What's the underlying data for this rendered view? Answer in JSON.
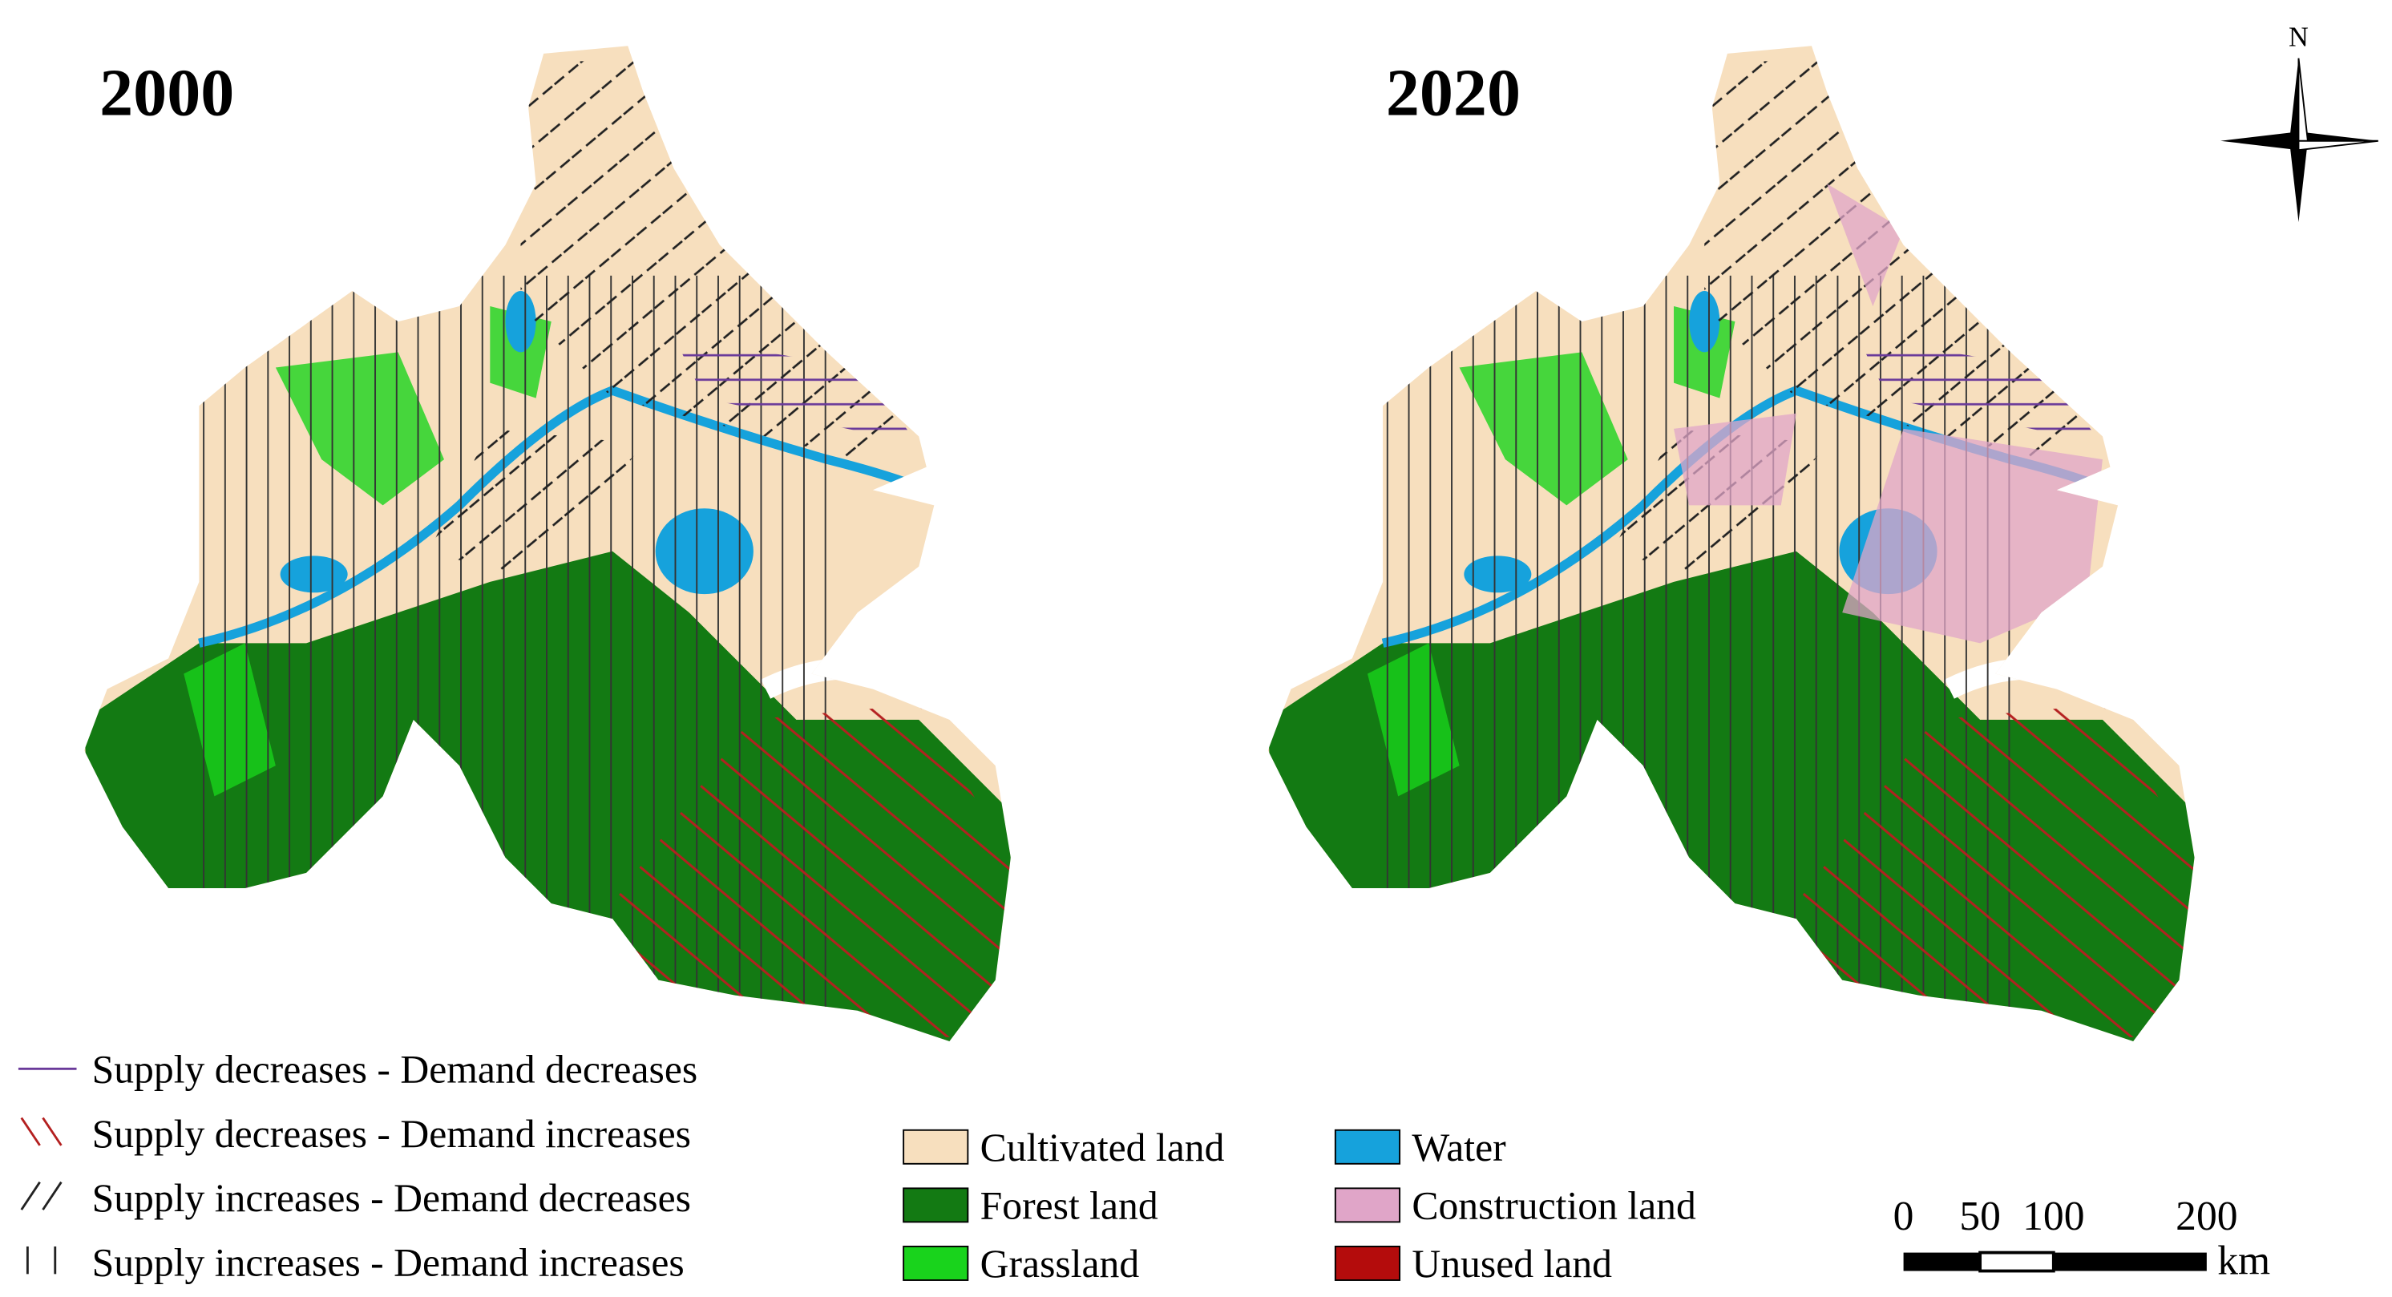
{
  "maps": [
    {
      "title": "2000"
    },
    {
      "title": "2020"
    }
  ],
  "change_legend": [
    "Supply decreases - Demand decreases",
    "Supply decreases - Demand increases",
    "Supply increases - Demand decreases",
    "Supply increases - Demand increases"
  ],
  "landuse_legend": [
    {
      "label": "Cultivated land",
      "color": "#f7dfbe"
    },
    {
      "label": "Forest land",
      "color": "#137a13"
    },
    {
      "label": "Grassland",
      "color": "#19d31c"
    },
    {
      "label": "Water",
      "color": "#16a2dc"
    },
    {
      "label": "Construction land",
      "color": "#e0a5c8"
    },
    {
      "label": "Unused land",
      "color": "#b40c0c"
    }
  ],
  "north": "N",
  "scale_bar": {
    "labels": [
      "0",
      "50",
      "100",
      "200"
    ],
    "unit": "km"
  }
}
